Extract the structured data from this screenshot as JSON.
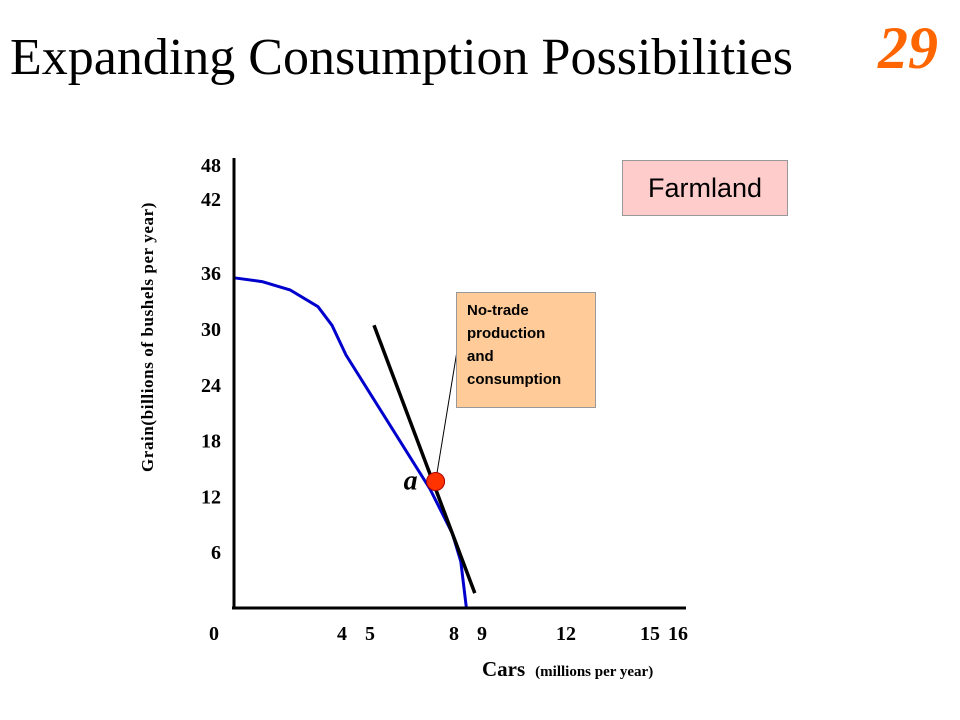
{
  "slide": {
    "title": "Expanding Consumption Possibilities",
    "number": "29",
    "number_color": "#ff6600"
  },
  "chart_data": {
    "type": "line",
    "region_label": "Farmland",
    "xlabel_main": "Cars",
    "xlabel_unit": "(millions per year)",
    "ylabel": "Grain(billions of bushels per year)",
    "x_ticks": [
      0,
      4,
      5,
      8,
      9,
      12,
      15,
      16
    ],
    "y_ticks": [
      6,
      12,
      18,
      24,
      30,
      36,
      42,
      48
    ],
    "xlim": [
      0,
      16
    ],
    "ylim": [
      0,
      48
    ],
    "series": [
      {
        "kind": "production-possibilities-curve",
        "color": "#0000cc",
        "points": [
          [
            0,
            35.5
          ],
          [
            1,
            35.1
          ],
          [
            2,
            34.2
          ],
          [
            3,
            32.4
          ],
          [
            3.5,
            30.4
          ],
          [
            4,
            27.2
          ],
          [
            5,
            22.4
          ],
          [
            6,
            17.6
          ],
          [
            7,
            12.8
          ],
          [
            7.8,
            8.0
          ],
          [
            8.1,
            5.0
          ],
          [
            8.3,
            0.0
          ]
        ]
      },
      {
        "kind": "price-line",
        "color": "#000000",
        "points": [
          [
            5.0,
            30.4
          ],
          [
            8.6,
            1.6
          ]
        ]
      }
    ],
    "point": {
      "label": "a",
      "x": 7.2,
      "y": 13.6,
      "color": "#ff3300"
    },
    "annotation": {
      "lines": [
        "No-trade",
        "production",
        "and",
        "consumption"
      ],
      "fill": "#ffcc99"
    }
  }
}
